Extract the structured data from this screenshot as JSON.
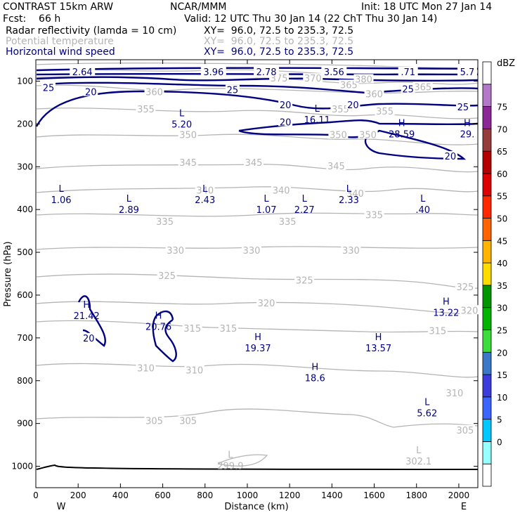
{
  "header": {
    "model": "CONTRAST 15km ARW",
    "org": "NCAR/MMM",
    "init": "Init: 18 UTC Mon 27 Jan 14",
    "fcst": "Fcst:    66 h",
    "valid": "Valid: 12 UTC Thu 30 Jan 14 (22 ChT Thu 30 Jan 14)",
    "fields": [
      {
        "name": "Radar reflectivity (lamda = 10 cm)",
        "xy": "XY=  96.0, 72.5 to 235.3, 72.5",
        "color": "#000000"
      },
      {
        "name": "Potential temperature",
        "xy": "XY=  96.0, 72.5 to 235.3, 72.5",
        "color": "#b4b4b4"
      },
      {
        "name": "Horizontal wind speed",
        "xy": "XY=  96.0, 72.5 to 235.3, 72.5",
        "color": "#000080"
      }
    ]
  },
  "chart_data": {
    "type": "cross-section contour",
    "xlabel": "Distance (km)",
    "ylabel": "Pressure (hPa)",
    "x_ticks": [
      0,
      200,
      400,
      600,
      800,
      1000,
      1200,
      1400,
      1600,
      1800,
      2000
    ],
    "y_ticks": [
      100,
      200,
      300,
      400,
      500,
      600,
      700,
      800,
      900,
      1000
    ],
    "xlim": [
      0,
      2090
    ],
    "ylim_pressure": [
      50,
      1050
    ],
    "west_label": "W",
    "east_label": "E",
    "colorbar": {
      "unit": "dBZ",
      "levels": [
        0,
        5,
        10,
        15,
        20,
        25,
        30,
        35,
        40,
        45,
        50,
        55,
        60,
        65,
        70,
        75
      ],
      "colors": [
        "#ffffff",
        "#96ffff",
        "#00c8ff",
        "#3c64ff",
        "#3c3cdc",
        "#3c78c8",
        "#3cdc3c",
        "#00b400",
        "#009600",
        "#ffdc00",
        "#ffb400",
        "#ff6400",
        "#ff2800",
        "#dc0000",
        "#b40000",
        "#963c3c",
        "#8c2896",
        "#b478c8",
        "#ffffff"
      ]
    },
    "extrema": [
      {
        "kind": "L",
        "value": "1.06",
        "x": 120,
        "p": 372
      },
      {
        "kind": "L",
        "value": "2.89",
        "x": 440,
        "p": 395
      },
      {
        "kind": "L",
        "value": "2.43",
        "x": 800,
        "p": 372
      },
      {
        "kind": "L",
        "value": "1.07",
        "x": 1090,
        "p": 395
      },
      {
        "kind": "L",
        "value": "2.27",
        "x": 1270,
        "p": 395
      },
      {
        "kind": "L",
        "value": "2.33",
        "x": 1480,
        "p": 372
      },
      {
        "kind": "L",
        "value": ".40",
        "x": 1830,
        "p": 395
      },
      {
        "kind": "L",
        "value": "5.20",
        "x": 690,
        "p": 195
      },
      {
        "kind": "L",
        "value": "16.11",
        "x": 1330,
        "p": 185
      },
      {
        "kind": "H",
        "value": "28.59",
        "x": 1730,
        "p": 218
      },
      {
        "kind": "H",
        "value": "29.",
        "x": 2040,
        "p": 218
      },
      {
        "kind": "H",
        "value": "21.42",
        "x": 240,
        "p": 643
      },
      {
        "kind": "H",
        "value": "20.76",
        "x": 580,
        "p": 668
      },
      {
        "kind": "H",
        "value": "19.37",
        "x": 1050,
        "p": 718
      },
      {
        "kind": "H",
        "value": "18.6",
        "x": 1320,
        "p": 788
      },
      {
        "kind": "H",
        "value": "13.57",
        "x": 1620,
        "p": 718
      },
      {
        "kind": "H",
        "value": "13.22",
        "x": 1940,
        "p": 635
      },
      {
        "kind": "L",
        "value": "5.62",
        "x": 1850,
        "p": 870
      },
      {
        "kind": "L",
        "value": "299.9",
        "x": 920,
        "p": 993
      },
      {
        "kind": "L",
        "value": "302.1",
        "x": 1810,
        "p": 983
      }
    ],
    "theta_labels": [
      {
        "value": "355",
        "x": 520,
        "p": 165
      },
      {
        "value": "355",
        "x": 1440,
        "p": 165
      },
      {
        "value": "355",
        "x": 1650,
        "p": 170
      },
      {
        "value": "350",
        "x": 720,
        "p": 225
      },
      {
        "value": "350",
        "x": 1430,
        "p": 225
      },
      {
        "value": "350",
        "x": 1570,
        "p": 225
      },
      {
        "value": "345",
        "x": 720,
        "p": 290
      },
      {
        "value": "345",
        "x": 1030,
        "p": 290
      },
      {
        "value": "345",
        "x": 1420,
        "p": 298
      },
      {
        "value": "340",
        "x": 800,
        "p": 355
      },
      {
        "value": "340",
        "x": 1160,
        "p": 355
      },
      {
        "value": "340",
        "x": 1510,
        "p": 362
      },
      {
        "value": "335",
        "x": 610,
        "p": 428
      },
      {
        "value": "335",
        "x": 1190,
        "p": 428
      },
      {
        "value": "335",
        "x": 1600,
        "p": 412
      },
      {
        "value": "330",
        "x": 660,
        "p": 495
      },
      {
        "value": "330",
        "x": 1020,
        "p": 495
      },
      {
        "value": "330",
        "x": 1490,
        "p": 495
      },
      {
        "value": "325",
        "x": 620,
        "p": 554
      },
      {
        "value": "325",
        "x": 1270,
        "p": 565
      },
      {
        "value": "325",
        "x": 2030,
        "p": 580
      },
      {
        "value": "320",
        "x": 1090,
        "p": 618
      },
      {
        "value": "320",
        "x": 2050,
        "p": 635
      },
      {
        "value": "315",
        "x": 740,
        "p": 677
      },
      {
        "value": "315",
        "x": 910,
        "p": 677
      },
      {
        "value": "315",
        "x": 1900,
        "p": 683
      },
      {
        "value": "310",
        "x": 520,
        "p": 770
      },
      {
        "value": "310",
        "x": 750,
        "p": 775
      },
      {
        "value": "310",
        "x": 1980,
        "p": 828
      },
      {
        "value": "305",
        "x": 560,
        "p": 893
      },
      {
        "value": "305",
        "x": 720,
        "p": 893
      },
      {
        "value": "305",
        "x": 2030,
        "p": 915
      },
      {
        "value": "360",
        "x": 560,
        "p": 125
      },
      {
        "value": "365",
        "x": 1480,
        "p": 108
      },
      {
        "value": "360",
        "x": 1600,
        "p": 130
      },
      {
        "value": "365",
        "x": 1830,
        "p": 113
      },
      {
        "value": "370",
        "x": 1310,
        "p": 93
      },
      {
        "value": "375",
        "x": 1150,
        "p": 93
      },
      {
        "value": "380",
        "x": 1550,
        "p": 95
      }
    ],
    "wind_labels": [
      {
        "value": "2.64",
        "x": 220,
        "p": 78
      },
      {
        "value": "3.96",
        "x": 840,
        "p": 78
      },
      {
        "value": "2.78",
        "x": 1090,
        "p": 78
      },
      {
        "value": "3.56",
        "x": 1410,
        "p": 78
      },
      {
        "value": ".71",
        "x": 1760,
        "p": 78
      },
      {
        "value": "5.7",
        "x": 2040,
        "p": 78
      },
      {
        "value": "25",
        "x": 60,
        "p": 115
      },
      {
        "value": "20",
        "x": 260,
        "p": 125
      },
      {
        "value": "25",
        "x": 930,
        "p": 120
      },
      {
        "value": "20",
        "x": 1180,
        "p": 155
      },
      {
        "value": "20",
        "x": 1500,
        "p": 155
      },
      {
        "value": "25",
        "x": 1760,
        "p": 118
      },
      {
        "value": "25",
        "x": 2020,
        "p": 160
      },
      {
        "value": "20",
        "x": 1180,
        "p": 195
      },
      {
        "value": "20",
        "x": 1960,
        "p": 275
      },
      {
        "value": "20",
        "x": 250,
        "p": 700
      }
    ]
  }
}
